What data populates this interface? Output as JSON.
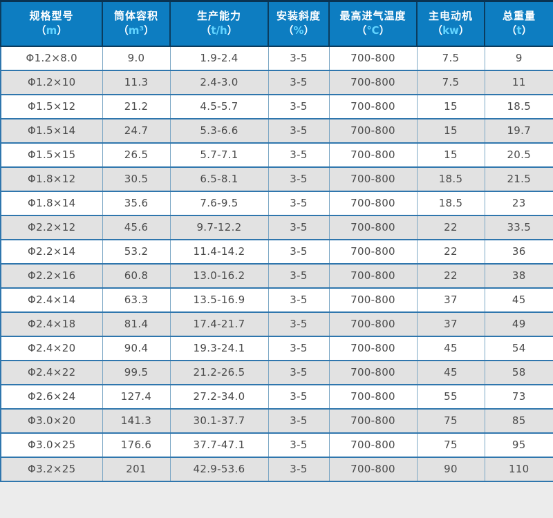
{
  "table": {
    "paren_open": "（",
    "paren_close": "）",
    "columns": [
      {
        "title": "规格型号",
        "unit": "m"
      },
      {
        "title": "筒体容积",
        "unit": "m³"
      },
      {
        "title": "生产能力",
        "unit": "t/h"
      },
      {
        "title": "安装斜度",
        "unit": "%"
      },
      {
        "title": "最高进气温度",
        "unit": "℃"
      },
      {
        "title": "主电动机",
        "unit": "kw"
      },
      {
        "title": "总重量",
        "unit": "t"
      }
    ],
    "rows": [
      [
        "Φ1.2×8.0",
        "9.0",
        "1.9-2.4",
        "3-5",
        "700-800",
        "7.5",
        "9"
      ],
      [
        "Φ1.2×10",
        "11.3",
        "2.4-3.0",
        "3-5",
        "700-800",
        "7.5",
        "11"
      ],
      [
        "Φ1.5×12",
        "21.2",
        "4.5-5.7",
        "3-5",
        "700-800",
        "15",
        "18.5"
      ],
      [
        "Φ1.5×14",
        "24.7",
        "5.3-6.6",
        "3-5",
        "700-800",
        "15",
        "19.7"
      ],
      [
        "Φ1.5×15",
        "26.5",
        "5.7-7.1",
        "3-5",
        "700-800",
        "15",
        "20.5"
      ],
      [
        "Φ1.8×12",
        "30.5",
        "6.5-8.1",
        "3-5",
        "700-800",
        "18.5",
        "21.5"
      ],
      [
        "Φ1.8×14",
        "35.6",
        "7.6-9.5",
        "3-5",
        "700-800",
        "18.5",
        "23"
      ],
      [
        "Φ2.2×12",
        "45.6",
        "9.7-12.2",
        "3-5",
        "700-800",
        "22",
        "33.5"
      ],
      [
        "Φ2.2×14",
        "53.2",
        "11.4-14.2",
        "3-5",
        "700-800",
        "22",
        "36"
      ],
      [
        "Φ2.2×16",
        "60.8",
        "13.0-16.2",
        "3-5",
        "700-800",
        "22",
        "38"
      ],
      [
        "Φ2.4×14",
        "63.3",
        "13.5-16.9",
        "3-5",
        "700-800",
        "37",
        "45"
      ],
      [
        "Φ2.4×18",
        "81.4",
        "17.4-21.7",
        "3-5",
        "700-800",
        "37",
        "49"
      ],
      [
        "Φ2.4×20",
        "90.4",
        "19.3-24.1",
        "3-5",
        "700-800",
        "45",
        "54"
      ],
      [
        "Φ2.4×22",
        "99.5",
        "21.2-26.5",
        "3-5",
        "700-800",
        "45",
        "58"
      ],
      [
        "Φ2.6×24",
        "127.4",
        "27.2-34.0",
        "3-5",
        "700-800",
        "55",
        "73"
      ],
      [
        "Φ3.0×20",
        "141.3",
        "30.1-37.7",
        "3-5",
        "700-800",
        "75",
        "85"
      ],
      [
        "Φ3.0×25",
        "176.6",
        "37.7-47.1",
        "3-5",
        "700-800",
        "75",
        "95"
      ],
      [
        "Φ3.2×25",
        "201",
        "42.9-53.6",
        "3-5",
        "700-800",
        "90",
        "110"
      ]
    ]
  },
  "colors": {
    "page_bg": "#ececec",
    "header_bg": "#0d7dc1",
    "header_text": "#ffffff",
    "header_border_dark": "#0b3c5e",
    "unit_text": "#62d4ff",
    "border_strong": "#2f76ad",
    "border_light": "#7aa6c4",
    "row_alt_bg": "#e2e2e2",
    "body_text": "#4a4a4a"
  }
}
